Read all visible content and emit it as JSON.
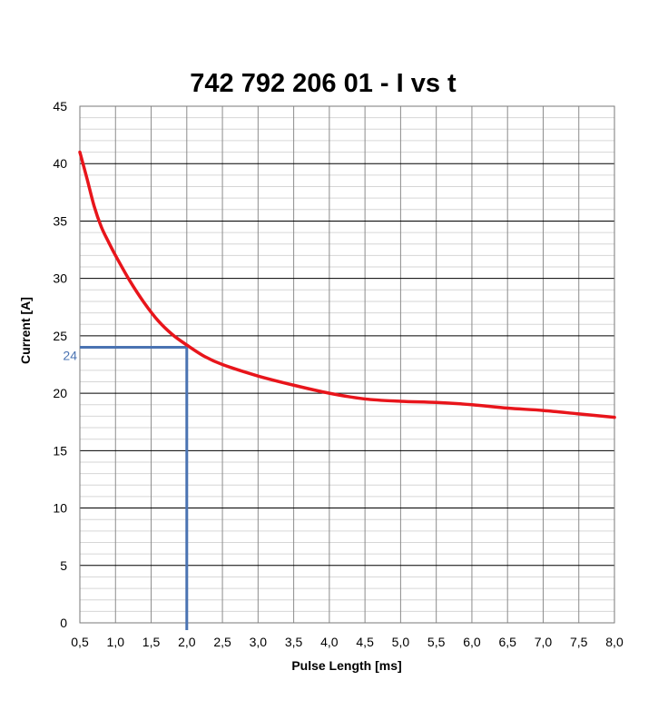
{
  "chart_data": {
    "type": "line",
    "title": "742 792 206 01  -  I vs t",
    "xlabel": "Pulse Length [ms]",
    "ylabel": "Current [A]",
    "xlim": [
      0.5,
      8.0
    ],
    "ylim": [
      0,
      45
    ],
    "x_ticks": [
      0.5,
      1.0,
      1.5,
      2.0,
      2.5,
      3.0,
      3.5,
      4.0,
      4.5,
      5.0,
      5.5,
      6.0,
      6.5,
      7.0,
      7.5,
      8.0
    ],
    "x_tick_labels": [
      "0,5",
      "1,0",
      "1,5",
      "2,0",
      "2,5",
      "3,0",
      "3,5",
      "4,0",
      "4,5",
      "5,0",
      "5,5",
      "6,0",
      "6,5",
      "7,0",
      "7,5",
      "8,0"
    ],
    "y_ticks": [
      0,
      5,
      10,
      15,
      20,
      25,
      30,
      35,
      40,
      45
    ],
    "y_tick_labels": [
      "0",
      "5",
      "10",
      "15",
      "20",
      "25",
      "30",
      "35",
      "40",
      "45"
    ],
    "y_minor_step": 1,
    "grid": true,
    "series": [
      {
        "color": "#e8151b",
        "x": [
          0.5,
          0.6,
          0.7,
          0.8,
          0.9,
          1.0,
          1.2,
          1.4,
          1.6,
          1.8,
          2.0,
          2.25,
          2.5,
          3.0,
          3.5,
          4.0,
          4.5,
          5.0,
          5.5,
          6.0,
          6.5,
          7.0,
          7.5,
          8.0
        ],
        "y": [
          41.0,
          38.7,
          36.3,
          34.5,
          33.2,
          32.0,
          29.8,
          27.9,
          26.3,
          25.1,
          24.2,
          23.2,
          22.5,
          21.5,
          20.7,
          20.0,
          19.5,
          19.3,
          19.2,
          19.0,
          18.7,
          18.5,
          18.2,
          17.9
        ]
      }
    ],
    "annotation": {
      "x": 2.0,
      "y": 24,
      "label": "24",
      "color": "#4a73b2"
    }
  }
}
